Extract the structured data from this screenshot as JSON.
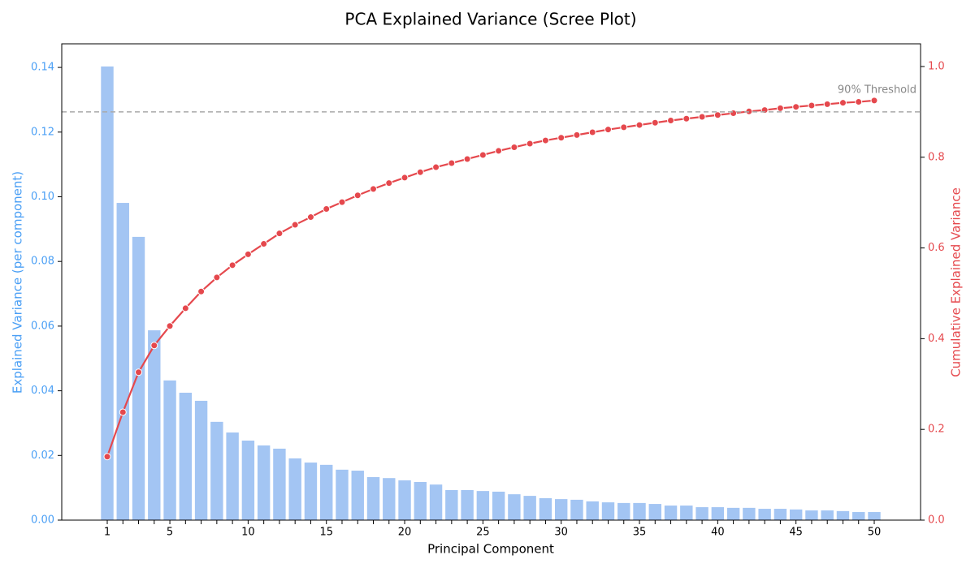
{
  "chart_data": {
    "type": "bar",
    "title": "PCA Explained Variance (Scree Plot)",
    "xlabel": "Principal Component",
    "ylabel": "Explained Variance (per component)",
    "y2label": "Cumulative Explained Variance",
    "categories": [
      "1",
      null,
      null,
      null,
      "5",
      null,
      null,
      null,
      null,
      "10",
      null,
      null,
      null,
      null,
      "15",
      null,
      null,
      null,
      null,
      "20",
      null,
      null,
      null,
      null,
      "25",
      null,
      null,
      null,
      null,
      "30",
      null,
      null,
      null,
      null,
      "35",
      null,
      null,
      null,
      null,
      "40",
      null,
      null,
      null,
      null,
      "45",
      null,
      null,
      null,
      null,
      "50"
    ],
    "series": [
      {
        "type": "bar",
        "axis": "y",
        "color": "#a3c5f3",
        "values": [
          0.1403,
          0.0981,
          0.0876,
          0.0587,
          0.0432,
          0.0394,
          0.0369,
          0.0304,
          0.0271,
          0.0246,
          0.0231,
          0.0221,
          0.0191,
          0.0178,
          0.0171,
          0.0156,
          0.0153,
          0.0133,
          0.013,
          0.0123,
          0.0118,
          0.011,
          0.0093,
          0.0093,
          0.009,
          0.0088,
          0.008,
          0.0075,
          0.0068,
          0.0065,
          0.0063,
          0.0058,
          0.0055,
          0.0053,
          0.0053,
          0.005,
          0.0045,
          0.0045,
          0.004,
          0.004,
          0.0038,
          0.0038,
          0.0035,
          0.0035,
          0.0033,
          0.003,
          0.003,
          0.0028,
          0.0025,
          0.0025
        ]
      },
      {
        "type": "line",
        "axis": "y2",
        "color": "#e5484d",
        "values": [
          0.14,
          0.238,
          0.326,
          0.385,
          0.428,
          0.467,
          0.504,
          0.535,
          0.562,
          0.586,
          0.609,
          0.632,
          0.651,
          0.668,
          0.686,
          0.701,
          0.716,
          0.73,
          0.743,
          0.755,
          0.767,
          0.778,
          0.787,
          0.796,
          0.805,
          0.814,
          0.822,
          0.83,
          0.837,
          0.843,
          0.849,
          0.855,
          0.861,
          0.866,
          0.871,
          0.876,
          0.881,
          0.885,
          0.889,
          0.893,
          0.897,
          0.901,
          0.904,
          0.908,
          0.911,
          0.914,
          0.917,
          0.92,
          0.922,
          0.925
        ]
      }
    ],
    "ylim": [
      0,
      0.1473
    ],
    "yticks": [
      {
        "value": 0,
        "label": "0.00"
      },
      {
        "value": 0.02,
        "label": "0.02"
      },
      {
        "value": 0.04,
        "label": "0.04"
      },
      {
        "value": 0.06,
        "label": "0.06"
      },
      {
        "value": 0.08,
        "label": "0.08"
      },
      {
        "value": 0.1,
        "label": "0.10"
      },
      {
        "value": 0.12,
        "label": "0.12"
      },
      {
        "value": 0.14,
        "label": "0.14"
      }
    ],
    "y2lim": [
      0,
      1.05
    ],
    "y2ticks": [
      {
        "value": 0,
        "label": "0.0"
      },
      {
        "value": 0.2,
        "label": "0.2"
      },
      {
        "value": 0.4,
        "label": "0.4"
      },
      {
        "value": 0.6,
        "label": "0.6"
      },
      {
        "value": 0.8,
        "label": "0.8"
      },
      {
        "value": 1,
        "label": "1.0"
      }
    ],
    "y_color": "#4a9ff5",
    "y2_color": "#e5484d",
    "threshold": {
      "value": 0.9,
      "label": "90% Threshold",
      "axis": "y2",
      "color": "#aaaaaa"
    }
  }
}
